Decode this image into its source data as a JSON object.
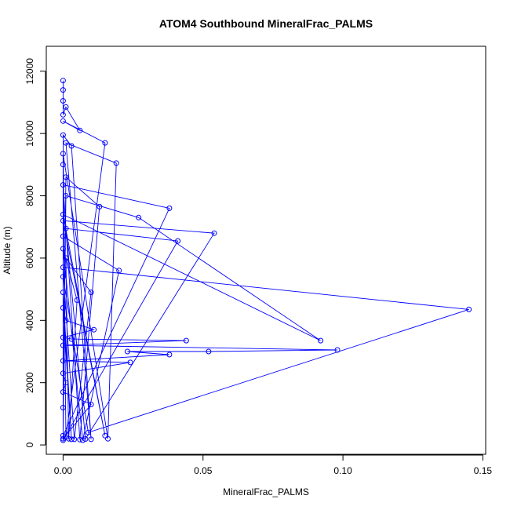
{
  "chart_data": {
    "type": "line",
    "title": "ATOM4 Southbound MineralFrac_PALMS",
    "xlabel": "MineralFrac_PALMS",
    "ylabel": "Altitude (m)",
    "xlim": [
      -0.006,
      0.151
    ],
    "ylim": [
      -300,
      12800
    ],
    "xticks": [
      0.0,
      0.05,
      0.1,
      0.15
    ],
    "xtick_labels": [
      "0.00",
      "0.05",
      "0.10",
      "0.15"
    ],
    "yticks": [
      0,
      2000,
      4000,
      6000,
      8000,
      10000,
      12000
    ],
    "ytick_labels": [
      "0",
      "2000",
      "4000",
      "6000",
      "8000",
      "10000",
      "12000"
    ],
    "grid": false,
    "legend": "none",
    "series": [
      {
        "color": "#0000ff",
        "marker": "open-circle",
        "points": [
          [
            0.0,
            11700
          ],
          [
            0.0,
            11400
          ],
          [
            0.0,
            11050
          ],
          [
            0.001,
            10850
          ],
          [
            0.0,
            10600
          ],
          [
            0.0,
            10400
          ],
          [
            0.006,
            10100
          ],
          [
            0.0,
            9950
          ],
          [
            0.001,
            9700
          ],
          [
            0.015,
            9700
          ],
          [
            0.003,
            9600
          ],
          [
            0.0,
            9350
          ],
          [
            0.019,
            9050
          ],
          [
            0.0,
            9000
          ],
          [
            0.001,
            8600
          ],
          [
            0.0,
            8350
          ],
          [
            0.001,
            8000
          ],
          [
            0.013,
            7650
          ],
          [
            0.038,
            7600
          ],
          [
            0.0,
            7400
          ],
          [
            0.027,
            7300
          ],
          [
            0.0,
            7200
          ],
          [
            0.001,
            6950
          ],
          [
            0.054,
            6800
          ],
          [
            0.0,
            6700
          ],
          [
            0.041,
            6550
          ],
          [
            0.0,
            6300
          ],
          [
            0.001,
            6000
          ],
          [
            0.0,
            5700
          ],
          [
            0.02,
            5600
          ],
          [
            0.0,
            5400
          ],
          [
            0.0,
            4900
          ],
          [
            0.01,
            4900
          ],
          [
            0.005,
            4650
          ],
          [
            0.0,
            4400
          ],
          [
            0.145,
            4350
          ],
          [
            0.001,
            4000
          ],
          [
            0.011,
            3700
          ],
          [
            0.0,
            3450
          ],
          [
            0.003,
            3400
          ],
          [
            0.092,
            3350
          ],
          [
            0.044,
            3350
          ],
          [
            0.0,
            3200
          ],
          [
            0.098,
            3050
          ],
          [
            0.052,
            3000
          ],
          [
            0.023,
            3000
          ],
          [
            0.038,
            2900
          ],
          [
            0.0,
            2700
          ],
          [
            0.024,
            2650
          ],
          [
            0.0,
            2300
          ],
          [
            0.001,
            2000
          ],
          [
            0.0,
            1700
          ],
          [
            0.01,
            1300
          ],
          [
            0.0,
            1200
          ],
          [
            0.009,
            400
          ],
          [
            0.015,
            300
          ],
          [
            0.0,
            300
          ],
          [
            0.001,
            250
          ],
          [
            0.016,
            200
          ],
          [
            0.002,
            200
          ],
          [
            0.004,
            180
          ],
          [
            0.006,
            170
          ],
          [
            0.008,
            190
          ],
          [
            0.01,
            180
          ],
          [
            0.0,
            150
          ],
          [
            0.007,
            150
          ],
          [
            0.003,
            180
          ],
          [
            0.0,
            200
          ]
        ],
        "path_order": [
          0,
          2,
          1,
          4,
          3,
          6,
          5,
          9,
          57,
          7,
          10,
          63,
          8,
          12,
          58,
          11,
          13,
          53,
          14,
          17,
          61,
          15,
          18,
          56,
          16,
          20,
          40,
          19,
          55,
          21,
          23,
          62,
          22,
          25,
          64,
          24,
          29,
          65,
          26,
          33,
          59,
          27,
          32,
          60,
          28,
          35,
          54,
          30,
          31,
          66,
          34,
          36,
          37,
          38,
          39,
          41,
          42,
          43,
          44,
          45,
          46,
          47,
          48,
          49,
          50,
          51,
          52,
          67
        ]
      }
    ]
  }
}
